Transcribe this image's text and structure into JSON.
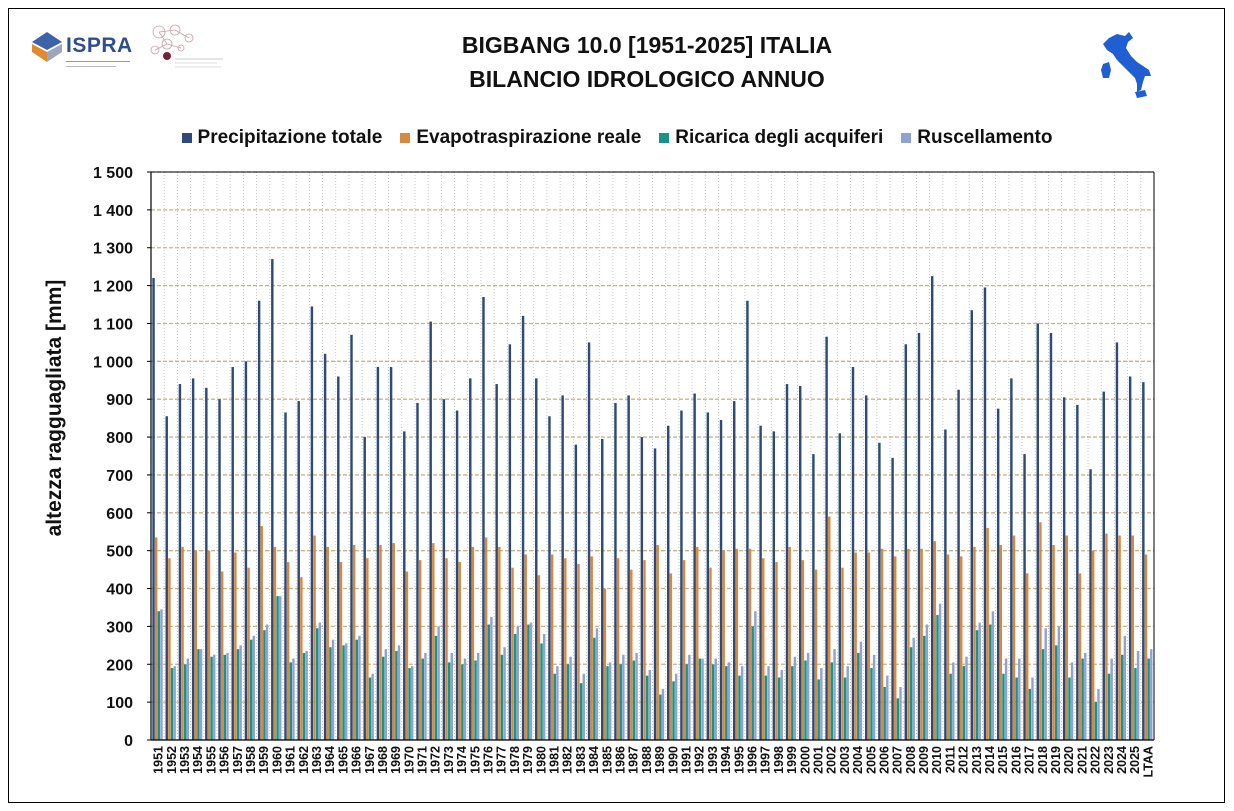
{
  "header": {
    "title_line1": "BIGBANG 10.0 [1951-2025] ITALIA",
    "title_line2": "BILANCIO IDROLOGICO ANNUO",
    "logo_text": "ISPRA"
  },
  "colors": {
    "precipitazione": "#2e4a78",
    "evapotraspirazione": "#d9883e",
    "ricarica": "#17948a",
    "ruscellamento": "#8fa3d3"
  },
  "chart_data": {
    "type": "bar",
    "title": "BIGBANG 10.0 [1951-2025] ITALIA - BILANCIO IDROLOGICO ANNUO",
    "ylabel": "altezza ragguagliata [mm]",
    "xlabel": "",
    "ylim": [
      0,
      1500
    ],
    "yticks": [
      0,
      100,
      200,
      300,
      400,
      500,
      600,
      700,
      800,
      900,
      1000,
      1100,
      1200,
      1300,
      1400,
      1500
    ],
    "ytick_labels": [
      "0",
      "100",
      "200",
      "300",
      "400",
      "500",
      "600",
      "700",
      "800",
      "900",
      "1 000",
      "1 100",
      "1 200",
      "1 300",
      "1 400",
      "1 500"
    ],
    "grid": true,
    "legend_position": "top",
    "categories": [
      "1951",
      "1952",
      "1953",
      "1954",
      "1955",
      "1956",
      "1957",
      "1958",
      "1959",
      "1960",
      "1961",
      "1962",
      "1963",
      "1964",
      "1965",
      "1966",
      "1967",
      "1968",
      "1969",
      "1970",
      "1971",
      "1972",
      "1973",
      "1974",
      "1975",
      "1976",
      "1977",
      "1978",
      "1979",
      "1980",
      "1981",
      "1982",
      "1983",
      "1984",
      "1985",
      "1986",
      "1987",
      "1988",
      "1989",
      "1990",
      "1991",
      "1992",
      "1993",
      "1994",
      "1995",
      "1996",
      "1997",
      "1998",
      "1999",
      "2000",
      "2001",
      "2002",
      "2003",
      "2004",
      "2005",
      "2006",
      "2007",
      "2008",
      "2009",
      "2010",
      "2011",
      "2012",
      "2013",
      "2014",
      "2015",
      "2016",
      "2017",
      "2018",
      "2019",
      "2020",
      "2021",
      "2022",
      "2023",
      "2024",
      "2025",
      "LTAA"
    ],
    "series": [
      {
        "name": "Precipitazione totale",
        "values": [
          1220,
          855,
          940,
          955,
          930,
          900,
          985,
          1000,
          1160,
          1270,
          865,
          895,
          1145,
          1020,
          960,
          1070,
          800,
          985,
          985,
          815,
          890,
          1105,
          900,
          870,
          955,
          1170,
          940,
          1045,
          1120,
          955,
          855,
          910,
          780,
          1050,
          795,
          890,
          910,
          800,
          770,
          830,
          870,
          915,
          865,
          845,
          895,
          1160,
          830,
          815,
          940,
          935,
          755,
          1065,
          810,
          985,
          910,
          785,
          745,
          1045,
          1075,
          1225,
          820,
          925,
          1135,
          1195,
          875,
          955,
          755,
          1100,
          1075,
          905,
          885,
          715,
          920,
          1050,
          960,
          945
        ]
      },
      {
        "name": "Evapotraspirazione reale",
        "values": [
          535,
          480,
          510,
          500,
          500,
          445,
          495,
          455,
          565,
          510,
          470,
          430,
          540,
          510,
          470,
          515,
          480,
          515,
          520,
          445,
          475,
          520,
          480,
          470,
          510,
          535,
          510,
          455,
          490,
          435,
          490,
          480,
          465,
          485,
          400,
          480,
          450,
          475,
          515,
          440,
          475,
          510,
          455,
          500,
          505,
          505,
          480,
          470,
          510,
          475,
          450,
          590,
          455,
          495,
          495,
          505,
          485,
          505,
          505,
          525,
          490,
          485,
          510,
          560,
          515,
          540,
          440,
          575,
          515,
          540,
          440,
          500,
          545,
          540,
          540,
          490
        ]
      },
      {
        "name": "Ricarica degli acquiferi",
        "values": [
          340,
          190,
          200,
          240,
          220,
          225,
          240,
          265,
          290,
          380,
          205,
          230,
          295,
          245,
          250,
          265,
          165,
          220,
          235,
          190,
          215,
          275,
          205,
          200,
          210,
          305,
          225,
          280,
          305,
          255,
          175,
          200,
          150,
          270,
          195,
          200,
          210,
          170,
          120,
          155,
          200,
          215,
          200,
          195,
          170,
          300,
          170,
          165,
          195,
          210,
          160,
          205,
          165,
          230,
          190,
          140,
          110,
          245,
          275,
          330,
          175,
          195,
          290,
          305,
          175,
          165,
          135,
          240,
          250,
          165,
          215,
          100,
          175,
          225,
          190,
          215
        ]
      },
      {
        "name": "Ruscellamento",
        "values": [
          345,
          195,
          215,
          240,
          225,
          230,
          250,
          275,
          305,
          380,
          215,
          235,
          310,
          265,
          255,
          275,
          175,
          240,
          250,
          195,
          230,
          300,
          230,
          215,
          230,
          325,
          245,
          300,
          310,
          280,
          195,
          220,
          175,
          295,
          205,
          225,
          230,
          185,
          135,
          175,
          225,
          215,
          215,
          205,
          195,
          340,
          195,
          185,
          220,
          230,
          190,
          240,
          195,
          260,
          225,
          170,
          140,
          270,
          305,
          360,
          205,
          220,
          310,
          340,
          215,
          215,
          165,
          295,
          300,
          205,
          230,
          135,
          215,
          275,
          235,
          240
        ]
      }
    ]
  }
}
